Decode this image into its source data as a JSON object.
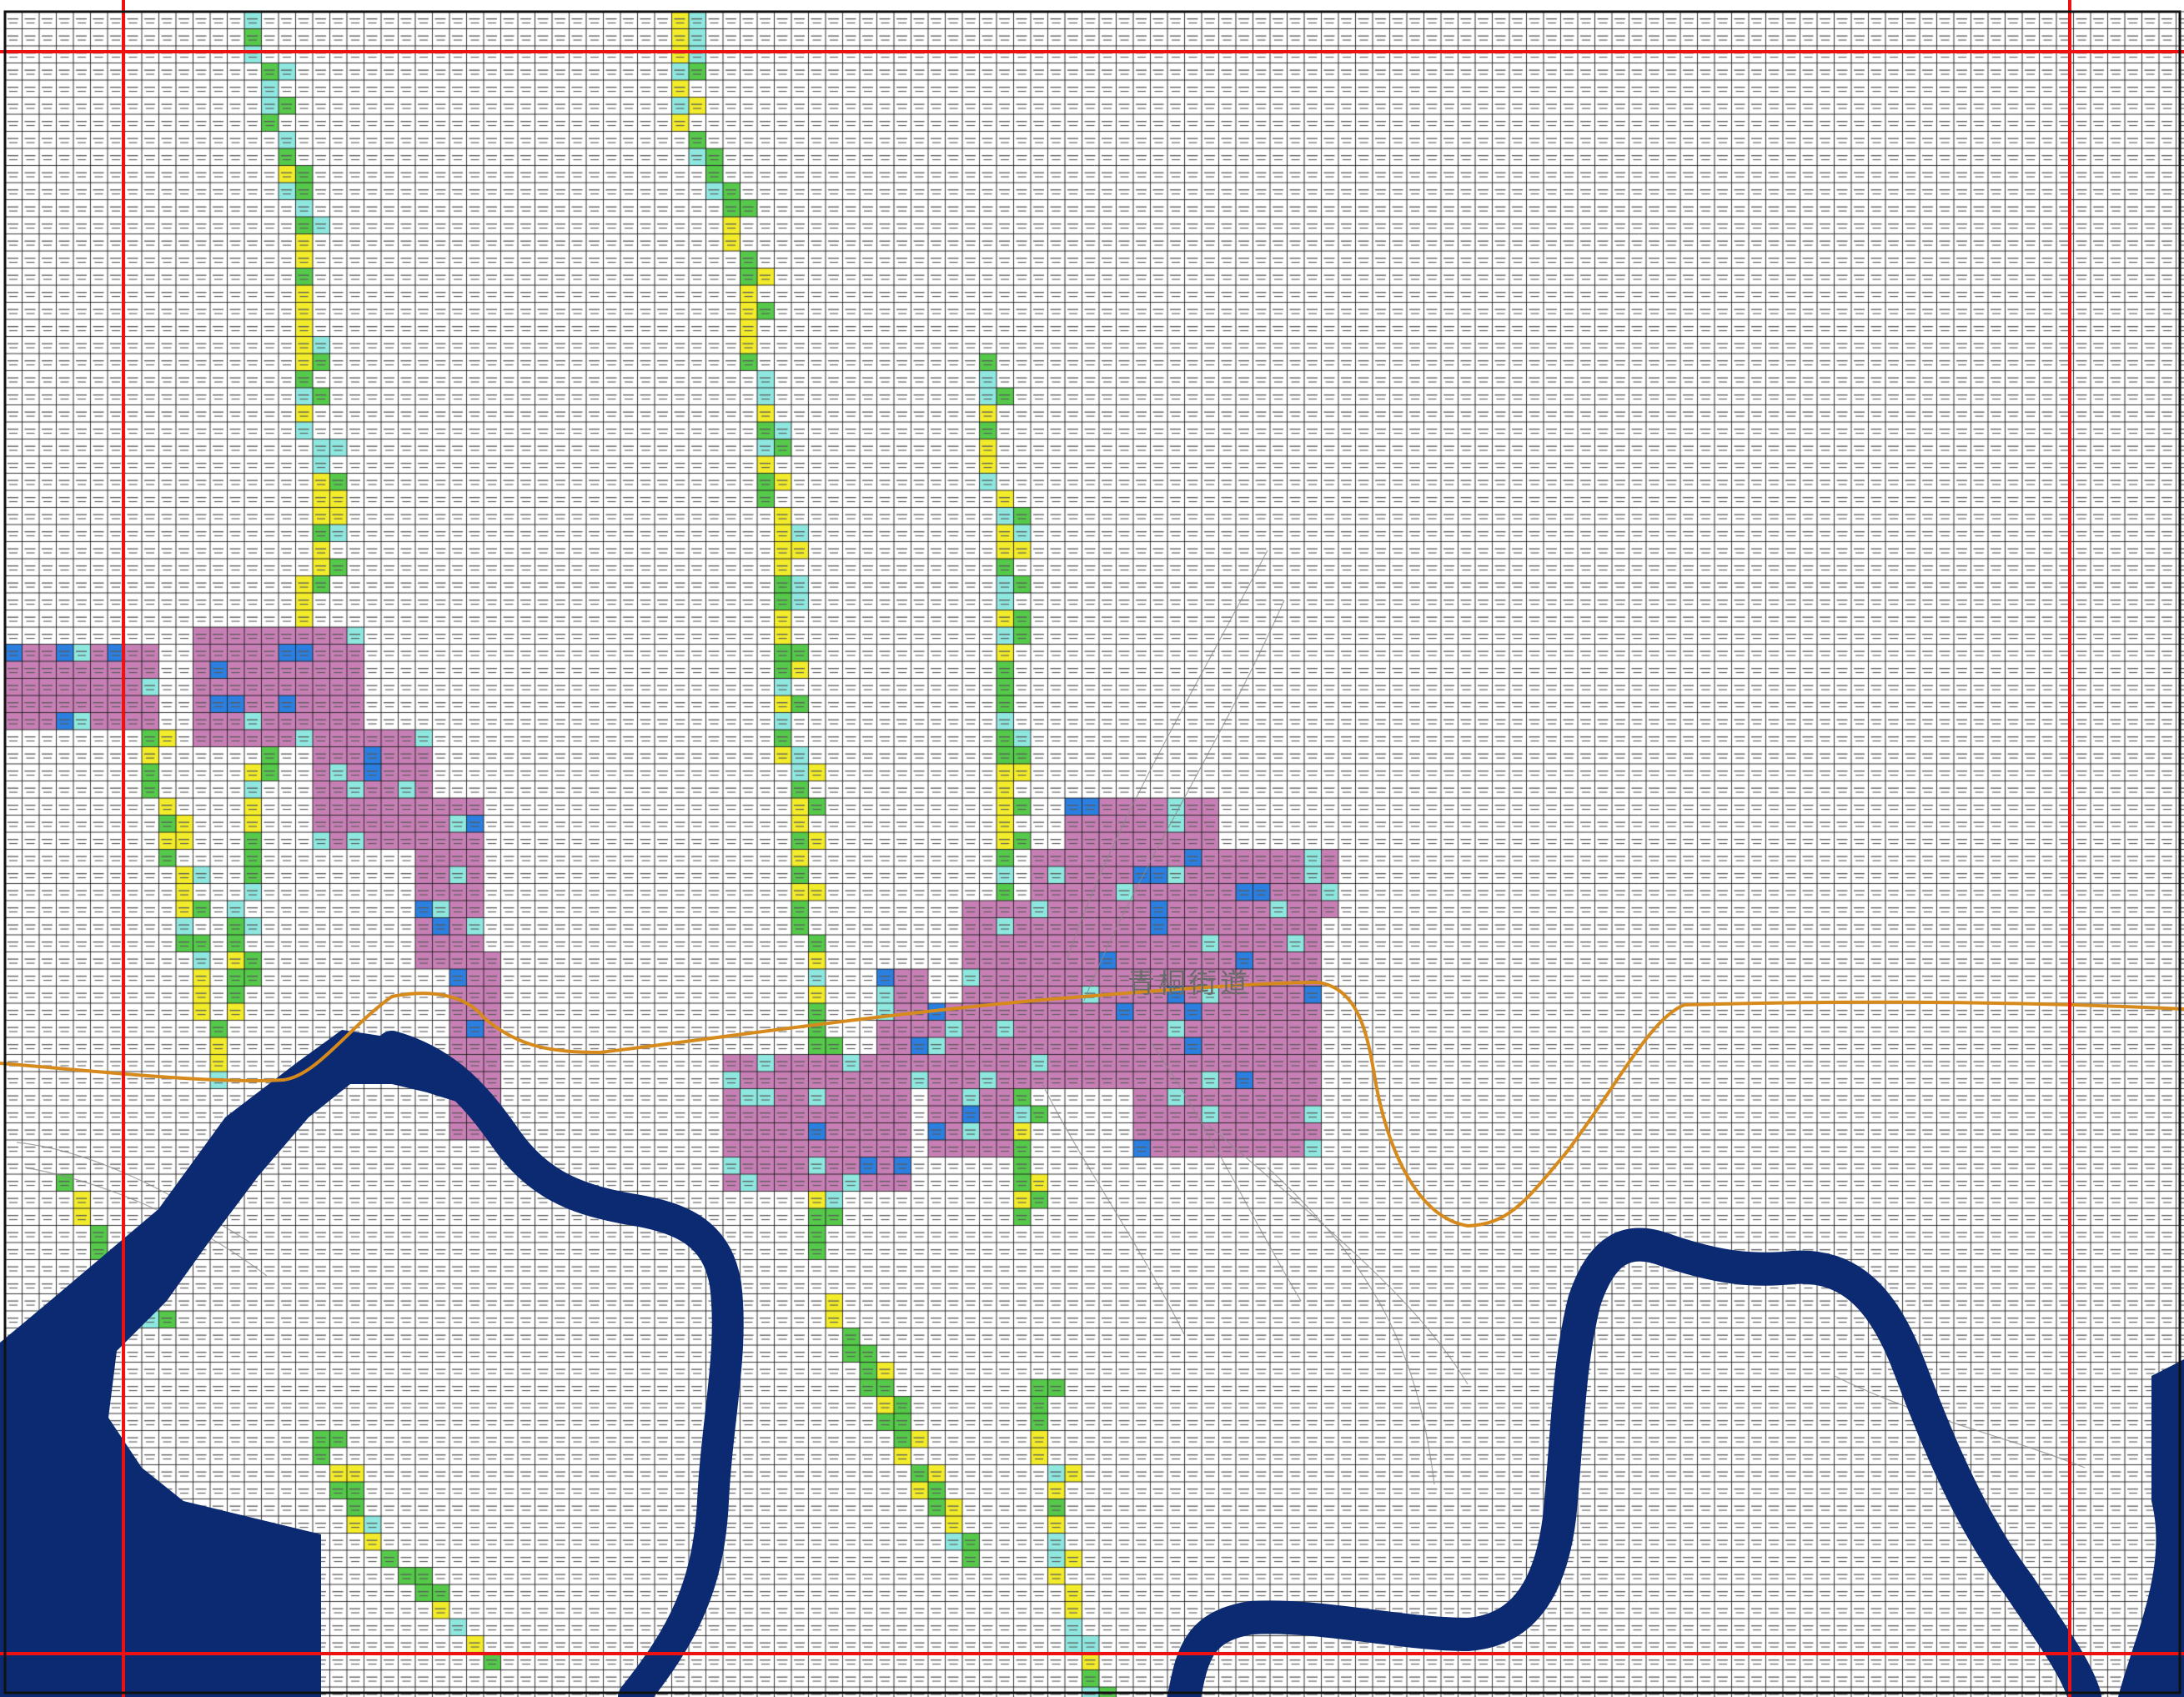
{
  "map": {
    "place_label": "青桐街道",
    "colors": {
      "background": "#ffffff",
      "grid_line": "#1c1c1c",
      "river": "#0c2a72",
      "flood_zone": "#c77fb5",
      "flood_zone_border": "#8a2a9e",
      "stream_green": "#55c94a",
      "stream_yellow": "#f2ec2a",
      "stream_cyan": "#8ee8e0",
      "stream_blue": "#2a7fe0",
      "boundary": "#d68a1c",
      "reference_line": "#ee1111",
      "contour": "#8a8a8a"
    },
    "legend_classes": [
      {
        "name": "river",
        "color": "#0c2a72"
      },
      {
        "name": "flood-zone",
        "color": "#c77fb5"
      },
      {
        "name": "stream-green",
        "color": "#55c94a"
      },
      {
        "name": "stream-yellow",
        "color": "#f2ec2a"
      },
      {
        "name": "stream-cyan",
        "color": "#8ee8e0"
      },
      {
        "name": "stream-blue",
        "color": "#2a7fe0"
      }
    ]
  }
}
